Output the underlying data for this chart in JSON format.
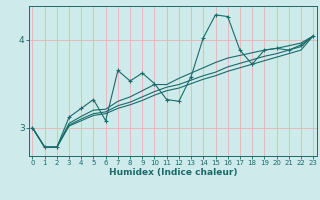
{
  "xlabel": "Humidex (Indice chaleur)",
  "background_color": "#ceeaea",
  "grid_color": "#e8b8b8",
  "line_color": "#1a6b6b",
  "x_ticks": [
    0,
    1,
    2,
    3,
    4,
    5,
    6,
    7,
    8,
    9,
    10,
    11,
    12,
    13,
    14,
    15,
    16,
    17,
    18,
    19,
    20,
    21,
    22,
    23
  ],
  "y_ticks": [
    3,
    4
  ],
  "ylim": [
    2.68,
    4.38
  ],
  "xlim": [
    -0.3,
    23.3
  ],
  "series_zigzag": [
    3.0,
    2.78,
    2.78,
    3.12,
    3.22,
    3.32,
    3.08,
    3.65,
    3.53,
    3.62,
    3.5,
    3.32,
    3.3,
    3.58,
    4.02,
    4.28,
    4.26,
    3.88,
    3.72,
    3.88,
    3.9,
    3.88,
    3.94,
    4.04
  ],
  "series_lines": [
    [
      3.0,
      2.78,
      2.78,
      3.05,
      3.13,
      3.2,
      3.21,
      3.3,
      3.35,
      3.42,
      3.49,
      3.49,
      3.56,
      3.62,
      3.68,
      3.74,
      3.79,
      3.82,
      3.85,
      3.88,
      3.9,
      3.93,
      3.96,
      4.04
    ],
    [
      3.0,
      2.78,
      2.78,
      3.03,
      3.1,
      3.16,
      3.18,
      3.25,
      3.29,
      3.35,
      3.41,
      3.46,
      3.49,
      3.54,
      3.59,
      3.63,
      3.69,
      3.73,
      3.77,
      3.81,
      3.84,
      3.88,
      3.92,
      4.04
    ],
    [
      3.0,
      2.78,
      2.78,
      3.02,
      3.08,
      3.14,
      3.16,
      3.22,
      3.26,
      3.31,
      3.37,
      3.42,
      3.45,
      3.5,
      3.55,
      3.59,
      3.64,
      3.68,
      3.72,
      3.76,
      3.8,
      3.84,
      3.88,
      4.04
    ]
  ]
}
